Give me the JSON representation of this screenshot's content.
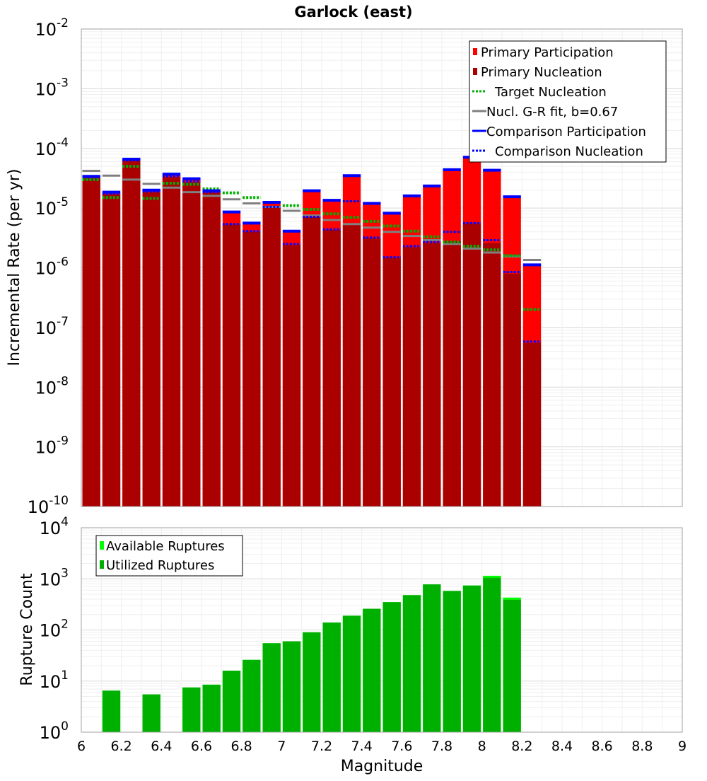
{
  "chart_data": [
    {
      "type": "bar",
      "title": "Garlock (east)",
      "ylabel": "Incremental Rate (per yr)",
      "xlabel": "",
      "xlim": [
        6,
        9
      ],
      "ylim": [
        1e-10,
        0.01
      ],
      "yscale": "log",
      "grid": true,
      "legend_position": "top-right",
      "bin_width": 0.1,
      "x": [
        6.05,
        6.15,
        6.25,
        6.35,
        6.45,
        6.55,
        6.65,
        6.75,
        6.85,
        6.95,
        7.05,
        7.15,
        7.25,
        7.35,
        7.45,
        7.55,
        7.65,
        7.75,
        7.85,
        7.95,
        8.05,
        8.15,
        8.25
      ],
      "y_ticks": [
        {
          "base": "10",
          "exp": "-10"
        },
        {
          "base": "10",
          "exp": "-9"
        },
        {
          "base": "10",
          "exp": "-8"
        },
        {
          "base": "10",
          "exp": "-7"
        },
        {
          "base": "10",
          "exp": "-6"
        },
        {
          "base": "10",
          "exp": "-5"
        },
        {
          "base": "10",
          "exp": "-4"
        },
        {
          "base": "10",
          "exp": "-3"
        },
        {
          "base": "10",
          "exp": "-2"
        }
      ],
      "colors": {
        "primary_participation": "#ff0000",
        "primary_nucleation": "#aa0000",
        "target_nucleation": "#00b000",
        "gr_fit": "#808080",
        "comparison": "#0000ff"
      },
      "legend": [
        {
          "label": "Primary Participation",
          "style": "box",
          "color": "#ff0000"
        },
        {
          "label": "Primary Nucleation",
          "style": "box",
          "color": "#aa0000"
        },
        {
          "label": "Target Nucleation",
          "style": "dotted",
          "color": "#00b000"
        },
        {
          "label": "Nucl. G-R fit, b=0.67",
          "style": "solid",
          "color": "#808080"
        },
        {
          "label": "Comparison Participation",
          "style": "solid",
          "color": "#0000ff"
        },
        {
          "label": "Comparison Nucleation",
          "style": "dotted",
          "color": "#0000ff"
        }
      ],
      "series": [
        {
          "name": "Primary Participation",
          "values": [
            3.3e-05,
            1.8e-05,
            6.5e-05,
            1.9e-05,
            3.6e-05,
            3e-05,
            1.9e-05,
            8.5e-06,
            5.5e-06,
            1.2e-05,
            4e-06,
            1.9e-05,
            1.3e-05,
            3.4e-05,
            1.15e-05,
            8e-06,
            1.55e-05,
            2.3e-05,
            4.3e-05,
            7e-05,
            4.2e-05,
            1.5e-05,
            1.1e-06
          ]
        },
        {
          "name": "Primary Nucleation",
          "values": [
            3.2e-05,
            1.7e-05,
            6.2e-05,
            1.85e-05,
            3.3e-05,
            2.7e-05,
            1.8e-05,
            5.3e-06,
            4e-06,
            1e-05,
            2.4e-06,
            7e-06,
            4.3e-06,
            5.5e-06,
            3.1e-06,
            1.45e-06,
            2.2e-06,
            2.6e-06,
            2.8e-06,
            5.5e-06,
            2.6e-06,
            8e-07,
            5.5e-08
          ]
        },
        {
          "name": "Target Nucleation",
          "values": [
            3e-05,
            1.5e-05,
            5e-05,
            1.45e-05,
            2.6e-05,
            2.5e-05,
            2.1e-05,
            1.8e-05,
            1.5e-05,
            1.25e-05,
            1.1e-05,
            9.5e-06,
            8e-06,
            7e-06,
            6e-06,
            5e-06,
            4.1e-06,
            3.3e-06,
            2.7e-06,
            2.3e-06,
            2e-06,
            1.6e-06,
            2e-07
          ]
        },
        {
          "name": "Nucl. G-R fit, b=0.67",
          "values": [
            4.2e-05,
            3.5e-05,
            3e-05,
            2.55e-05,
            2.2e-05,
            1.85e-05,
            1.6e-05,
            1.4e-05,
            1.2e-05,
            1.05e-05,
            9e-06,
            7.5e-06,
            6.3e-06,
            5.4e-06,
            4.7e-06,
            4e-06,
            3.4e-06,
            2.9e-06,
            2.5e-06,
            2.1e-06,
            1.8e-06,
            1.55e-06,
            1.35e-06
          ]
        },
        {
          "name": "Comparison Participation",
          "values": [
            3.4e-05,
            1.85e-05,
            6.6e-05,
            2e-05,
            3.7e-05,
            3.1e-05,
            1.95e-05,
            8.6e-06,
            5.6e-06,
            1.25e-05,
            4.1e-06,
            1.95e-05,
            1.35e-05,
            3.5e-05,
            1.2e-05,
            8.2e-06,
            1.6e-05,
            2.35e-05,
            4.4e-05,
            7.1e-05,
            4.3e-05,
            1.55e-05,
            1.12e-06
          ]
        },
        {
          "name": "Comparison Nucleation",
          "values": [
            3.3e-05,
            1.75e-05,
            6.3e-05,
            1.9e-05,
            3.4e-05,
            2.8e-05,
            1.85e-05,
            5.4e-06,
            4.1e-06,
            1.05e-05,
            2.5e-06,
            7.1e-06,
            4.4e-06,
            1.3e-05,
            3.2e-06,
            1.5e-06,
            2.3e-06,
            2.7e-06,
            4e-06,
            5.6e-06,
            2.9e-06,
            8.5e-07,
            5.8e-08
          ]
        }
      ]
    },
    {
      "type": "bar",
      "title": "",
      "xlabel": "Magnitude",
      "ylabel": "Rupture Count",
      "xlim": [
        6,
        9
      ],
      "ylim": [
        1,
        10000
      ],
      "yscale": "log",
      "grid": true,
      "legend_position": "top-left",
      "bin_width": 0.1,
      "x_ticks": [
        "6",
        "6.2",
        "6.4",
        "6.6",
        "6.8",
        "7",
        "7.2",
        "7.4",
        "7.6",
        "7.8",
        "8",
        "8.2",
        "8.4",
        "8.6",
        "8.8",
        "9"
      ],
      "y_ticks": [
        {
          "base": "10",
          "exp": "0"
        },
        {
          "base": "10",
          "exp": "1"
        },
        {
          "base": "10",
          "exp": "2"
        },
        {
          "base": "10",
          "exp": "3"
        },
        {
          "base": "10",
          "exp": "4"
        }
      ],
      "x": [
        6.05,
        6.15,
        6.25,
        6.35,
        6.45,
        6.55,
        6.65,
        6.75,
        6.85,
        6.95,
        7.05,
        7.15,
        7.25,
        7.35,
        7.45,
        7.55,
        7.65,
        7.75,
        7.85,
        7.95,
        8.05,
        8.15
      ],
      "colors": {
        "available": "#00ff00",
        "utilized": "#00b000"
      },
      "legend": [
        {
          "label": "Available Ruptures",
          "color": "#00ff00"
        },
        {
          "label": "Utilized Ruptures",
          "color": "#00b000"
        }
      ],
      "series": [
        {
          "name": "Available Ruptures",
          "values": [
            0,
            6.5,
            0,
            5.5,
            0,
            7.5,
            8.5,
            16,
            26,
            55,
            60,
            90,
            140,
            190,
            260,
            350,
            480,
            780,
            580,
            740,
            1150,
            430
          ]
        },
        {
          "name": "Utilized Ruptures",
          "values": [
            0,
            6.5,
            0,
            5.5,
            0,
            7.5,
            8.5,
            16,
            26,
            55,
            60,
            90,
            140,
            190,
            260,
            350,
            480,
            780,
            580,
            740,
            1050,
            390
          ]
        }
      ]
    }
  ]
}
